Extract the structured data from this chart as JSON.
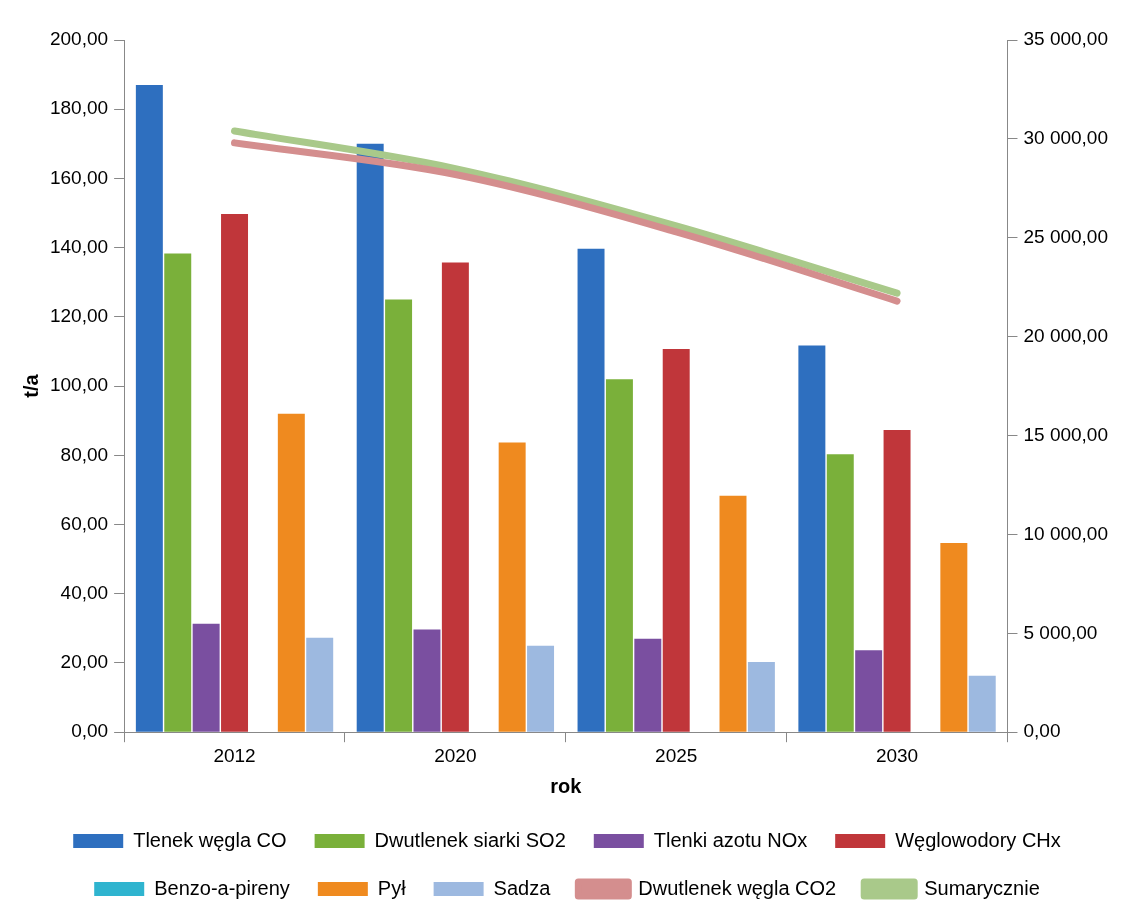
{
  "chart_data": {
    "type": "bar",
    "xlabel": "rok",
    "ylabel": "t/a",
    "categories": [
      "2012",
      "2020",
      "2025",
      "2030"
    ],
    "series": [
      {
        "name": "Tlenek węgla CO",
        "color": "#2e6fbf",
        "values": [
          187,
          170,
          139.7,
          111.7
        ]
      },
      {
        "name": "Dwutlenek siarki SO2",
        "color": "#7ab03a",
        "values": [
          138.3,
          125,
          102,
          80.3
        ]
      },
      {
        "name": "Tlenki azotu NOx",
        "color": "#7a4fa0",
        "values": [
          31.3,
          29.7,
          27,
          23.7
        ]
      },
      {
        "name": "Węglowodory CHx",
        "color": "#c0363a",
        "values": [
          149.7,
          135.7,
          110.7,
          87.3
        ]
      },
      {
        "name": "Benzo-a-pireny",
        "color": "#2fb4cf",
        "values": [
          0,
          0,
          0,
          0
        ]
      },
      {
        "name": "Pył",
        "color": "#ef8a1f",
        "values": [
          92,
          83.7,
          68.3,
          54.7
        ]
      },
      {
        "name": "Sadza",
        "color": "#9db9e0",
        "values": [
          27.3,
          25,
          20.3,
          16.3
        ]
      },
      {
        "name": "Dwutlenek węgla CO2",
        "type": "line",
        "axis": "y2",
        "color": "#d48e8e",
        "values": [
          29800,
          28200,
          25300,
          21800
        ]
      },
      {
        "name": "Sumarycznie",
        "type": "line",
        "axis": "y2",
        "color": "#a9c98a",
        "values": [
          30400,
          28500,
          25600,
          22200
        ]
      }
    ],
    "ylim": [
      0,
      200
    ],
    "yticks": [
      {
        "value": 0,
        "label": "0,00"
      },
      {
        "value": 20,
        "label": "20,00"
      },
      {
        "value": 40,
        "label": "40,00"
      },
      {
        "value": 60,
        "label": "60,00"
      },
      {
        "value": 80,
        "label": "80,00"
      },
      {
        "value": 100,
        "label": "100,00"
      },
      {
        "value": 120,
        "label": "120,00"
      },
      {
        "value": 140,
        "label": "140,00"
      },
      {
        "value": 160,
        "label": "160,00"
      },
      {
        "value": 180,
        "label": "180,00"
      },
      {
        "value": 200,
        "label": "200,00"
      }
    ],
    "y2lim": [
      0,
      35000
    ],
    "y2ticks": [
      {
        "value": 0,
        "label": "0,00"
      },
      {
        "value": 5000,
        "label": "5 000,00"
      },
      {
        "value": 10000,
        "label": "10 000,00"
      },
      {
        "value": 15000,
        "label": "15 000,00"
      },
      {
        "value": 20000,
        "label": "20 000,00"
      },
      {
        "value": 25000,
        "label": "25 000,00"
      },
      {
        "value": 30000,
        "label": "30 000,00"
      },
      {
        "value": 35000,
        "label": "35 000,00"
      }
    ],
    "grid": false,
    "legend": "bottom",
    "marker": "none"
  }
}
